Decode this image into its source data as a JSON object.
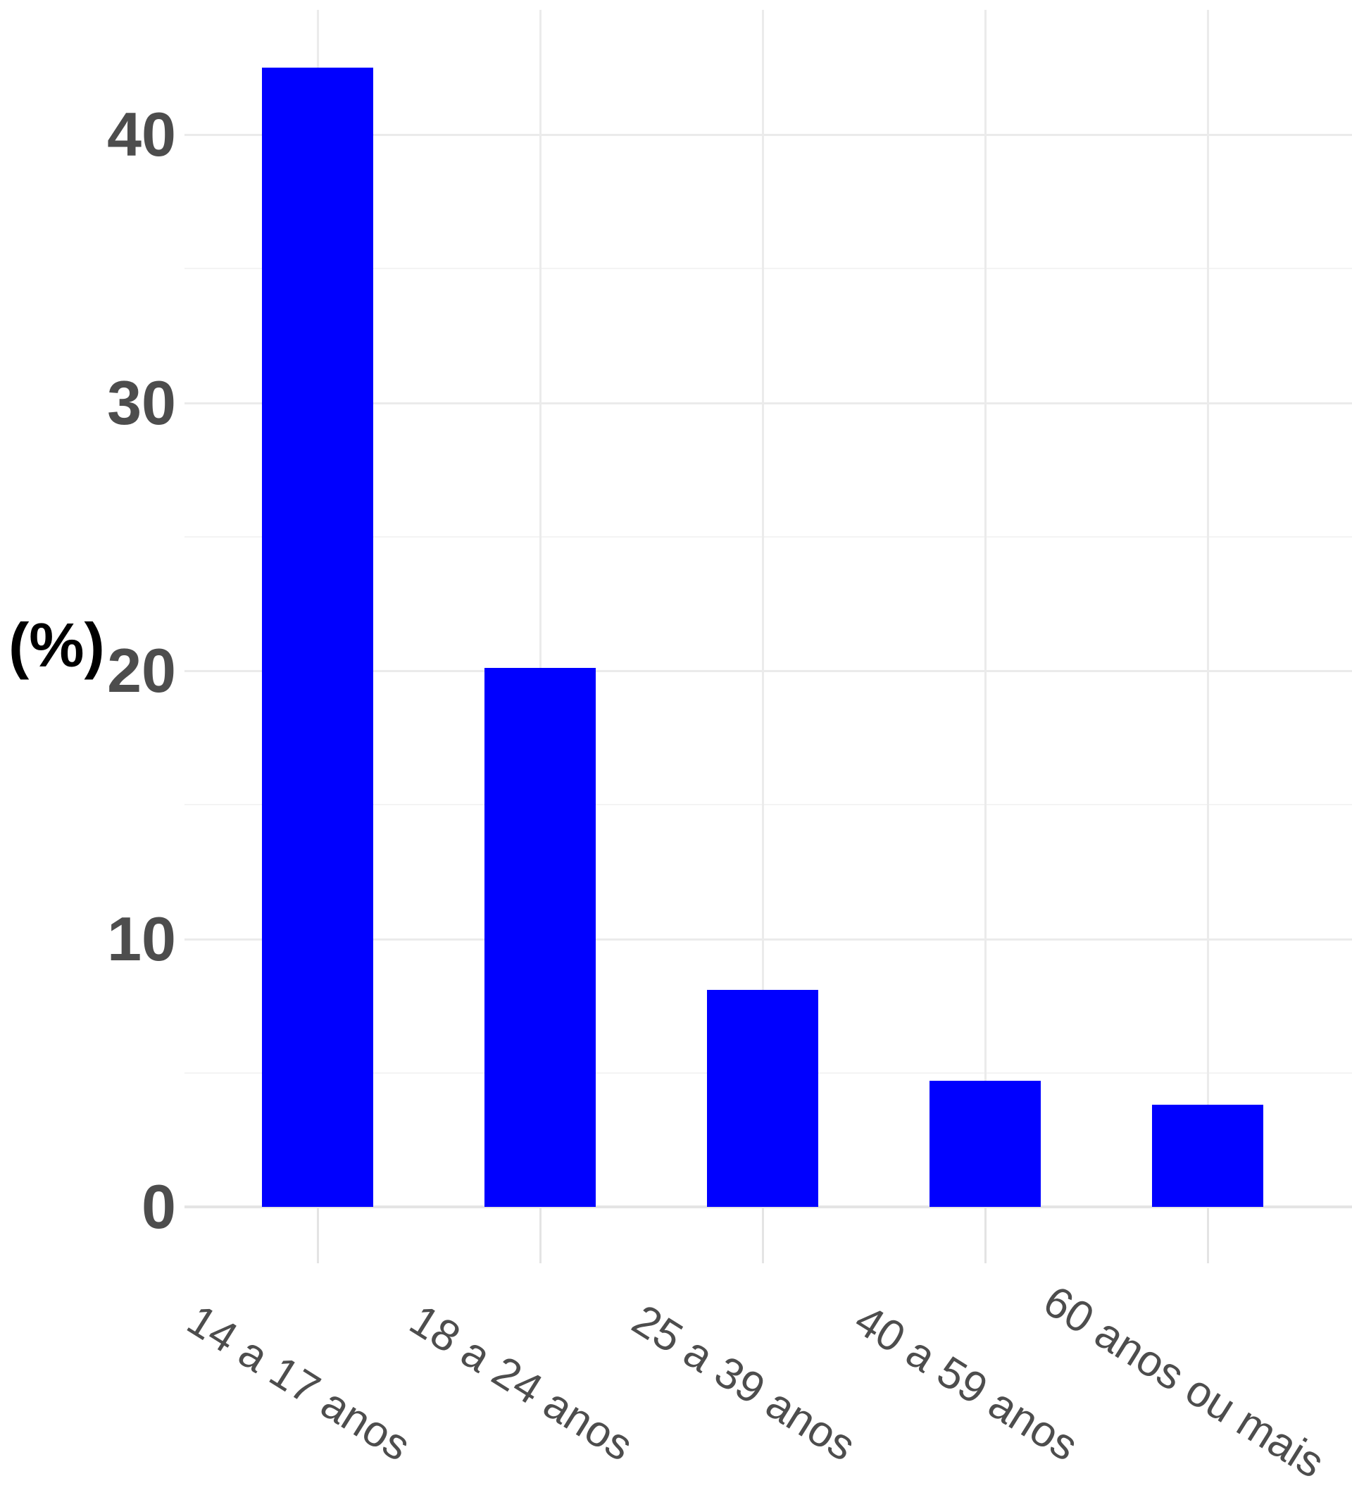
{
  "chart_data": {
    "type": "bar",
    "title": "",
    "xlabel": "",
    "ylabel": "(%)",
    "categories": [
      "14 a 17 anos",
      "18 a 24 anos",
      "25 a 39 anos",
      "40 a 59 anos",
      "60 anos ou mais"
    ],
    "values": [
      42.5,
      20.1,
      8.1,
      4.7,
      3.8
    ],
    "yticks": [
      0,
      10,
      20,
      30,
      40
    ],
    "yticks_minor": [
      5,
      15,
      25,
      35
    ],
    "ylim": [
      0,
      44.6
    ],
    "bar_color": "#0000ff",
    "grid": true,
    "legend": false,
    "x_label_rotation_deg": 32
  }
}
